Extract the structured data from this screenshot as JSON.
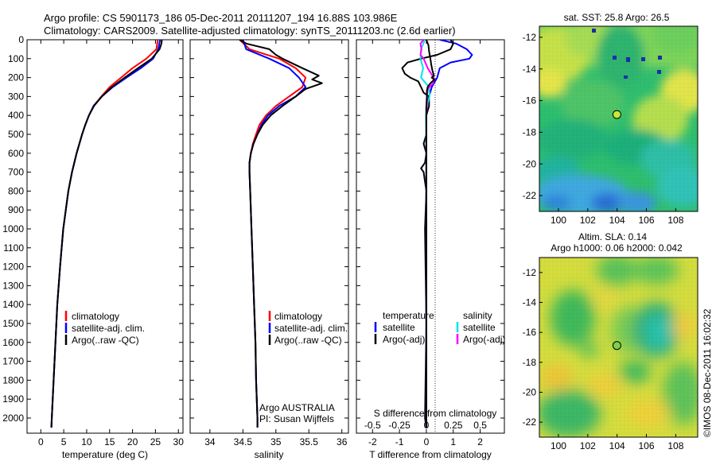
{
  "header": {
    "line1": "Argo profile: CS 5901173_186 05-Dec-2011 20111207_194 16.88S 103.986E",
    "line2": "Climatology: CARS2009. Satellite-adjusted climatology: synTS_20111203.nc (2.6d earlier)"
  },
  "side_stamp": "©IMOS 08-Dec-2011 16:02:32",
  "colors": {
    "climatology": "#ff0000",
    "satellite": "#0000ff",
    "argo": "#000000",
    "salinity_satellite": "#00e5e5",
    "salinity_argo": "#ff00ff"
  },
  "chart_data": [
    {
      "type": "line",
      "id": "temperature",
      "xlabel": "temperature (deg C)",
      "ylabel": "",
      "xlim": [
        -3,
        31
      ],
      "ylim": [
        2080,
        0
      ],
      "xticks": [
        0,
        5,
        10,
        15,
        20,
        25,
        30
      ],
      "xtick_labels": [
        "0",
        "5",
        "10",
        "15",
        "20",
        "25",
        "30"
      ],
      "yticks": [
        0,
        100,
        200,
        300,
        400,
        500,
        600,
        700,
        800,
        900,
        1000,
        1100,
        1200,
        1300,
        1400,
        1500,
        1600,
        1700,
        1800,
        1900,
        2000
      ],
      "ytick_labels": [
        "0",
        "100",
        "200",
        "300",
        "400",
        "500",
        "600",
        "700",
        "800",
        "900",
        "1000",
        "1100",
        "1200",
        "1300",
        "1400",
        "1500",
        "1600",
        "1700",
        "1800",
        "1900",
        "2000"
      ],
      "legend": [
        "climatology",
        "satellite-adj. clim.",
        "Argo(..raw -QC)"
      ],
      "series": [
        {
          "name": "climatology",
          "color": "#ff0000",
          "depth": [
            0,
            50,
            100,
            150,
            200,
            250,
            300,
            350,
            400,
            450,
            500,
            600,
            700,
            800,
            1000,
            1200,
            1400,
            1600,
            1800,
            2000,
            2050
          ],
          "values": [
            25.5,
            25.2,
            23.0,
            20.0,
            17.5,
            15.0,
            13.2,
            11.5,
            10.5,
            9.7,
            9.0,
            7.8,
            6.8,
            6.0,
            4.9,
            4.2,
            3.6,
            3.2,
            2.8,
            2.4,
            2.3
          ]
        },
        {
          "name": "satellite-adj. clim.",
          "color": "#0000ff",
          "depth": [
            0,
            50,
            100,
            150,
            200,
            250,
            300,
            350,
            400,
            450,
            500,
            600,
            700,
            800,
            1000,
            1200,
            1400,
            1600,
            1800,
            2000,
            2050
          ],
          "values": [
            26.0,
            25.6,
            24.5,
            21.8,
            18.7,
            15.7,
            13.3,
            11.5,
            10.5,
            9.7,
            9.0,
            7.8,
            6.8,
            6.0,
            4.9,
            4.2,
            3.6,
            3.2,
            2.8,
            2.4,
            2.3
          ]
        },
        {
          "name": "Argo(..raw -QC)",
          "color": "#000000",
          "depth": [
            0,
            20,
            50,
            100,
            150,
            200,
            250,
            300,
            350,
            400,
            450,
            500,
            600,
            700,
            800,
            1000,
            1200,
            1400,
            1600,
            1800,
            2000,
            2050
          ],
          "values": [
            26.4,
            26.3,
            25.9,
            24.2,
            21.2,
            18.3,
            15.5,
            13.3,
            11.6,
            10.5,
            9.7,
            9.0,
            7.8,
            6.8,
            6.0,
            4.9,
            4.2,
            3.6,
            3.2,
            2.8,
            2.4,
            2.3
          ]
        }
      ]
    },
    {
      "type": "line",
      "id": "salinity",
      "xlabel": "salinity",
      "ylabel": "",
      "xlim": [
        33.7,
        36.1
      ],
      "ylim": [
        2080,
        0
      ],
      "xticks": [
        34,
        34.5,
        35,
        35.5,
        36
      ],
      "xtick_labels": [
        "34",
        "34.5",
        "35",
        "35.5",
        "36"
      ],
      "legend": [
        "climatology",
        "satellite-adj. clim.",
        "Argo(..raw -QC)"
      ],
      "annotation": [
        "Argo AUSTRALIA",
        "PI: Susan Wijffels"
      ],
      "series": [
        {
          "name": "climatology",
          "color": "#ff0000",
          "depth": [
            0,
            50,
            100,
            150,
            200,
            250,
            300,
            350,
            400,
            450,
            500,
            550,
            600,
            650,
            700,
            800,
            1000,
            1200,
            1400,
            1600,
            1800,
            2000,
            2050
          ],
          "values": [
            34.45,
            34.6,
            35.05,
            35.3,
            35.45,
            35.4,
            35.2,
            35.0,
            34.85,
            34.75,
            34.7,
            34.65,
            34.62,
            34.6,
            34.6,
            34.61,
            34.63,
            34.65,
            34.67,
            34.69,
            34.7,
            34.72,
            34.72
          ]
        },
        {
          "name": "satellite-adj. clim.",
          "color": "#0000ff",
          "depth": [
            0,
            50,
            100,
            150,
            200,
            250,
            300,
            350,
            400,
            450,
            500,
            550,
            600,
            650,
            700,
            800,
            1000,
            1200,
            1400,
            1600,
            1800,
            2000,
            2050
          ],
          "values": [
            34.5,
            34.55,
            34.9,
            35.2,
            35.35,
            35.45,
            35.3,
            35.05,
            34.88,
            34.78,
            34.72,
            34.66,
            34.62,
            34.6,
            34.6,
            34.61,
            34.63,
            34.65,
            34.67,
            34.69,
            34.7,
            34.72,
            34.72
          ]
        },
        {
          "name": "Argo(..raw -QC)",
          "color": "#000000",
          "depth": [
            0,
            20,
            50,
            80,
            100,
            150,
            190,
            210,
            230,
            260,
            300,
            350,
            400,
            450,
            500,
            550,
            600,
            650,
            700,
            800,
            1000,
            1200,
            1400,
            1600,
            1800,
            2000,
            2050
          ],
          "values": [
            34.45,
            34.55,
            34.9,
            35.0,
            35.1,
            35.4,
            35.65,
            35.55,
            35.7,
            35.45,
            35.3,
            35.1,
            34.92,
            34.8,
            34.72,
            34.66,
            34.62,
            34.6,
            34.6,
            34.61,
            34.63,
            34.65,
            34.67,
            34.69,
            34.7,
            34.72,
            34.72
          ]
        }
      ]
    },
    {
      "type": "line",
      "id": "difference",
      "xlabel": "T difference from climatology",
      "x2label": "S difference from climatology",
      "xlim": [
        -2.6,
        2.9
      ],
      "ylim": [
        2080,
        0
      ],
      "xticks": [
        -2,
        -1,
        0,
        1,
        2
      ],
      "xtick_labels": [
        "-2",
        "-1",
        "0",
        "1",
        "2"
      ],
      "x2ticks": [
        -0.5,
        -0.25,
        0,
        0.25,
        0.5
      ],
      "x2tick_labels": [
        "-0.5",
        "-0.25",
        "0",
        "0.25",
        "0.5"
      ],
      "x2_scale": 4,
      "legend_temperature": {
        "title": "temperature",
        "items": [
          "satellite",
          "Argo(-adj)"
        ]
      },
      "legend_salinity": {
        "title": "salinity",
        "items": [
          "satellite",
          "Argo(-adj)"
        ]
      },
      "series": [
        {
          "name": "T satellite",
          "color": "#0000ff",
          "depth": [
            0,
            20,
            50,
            80,
            100,
            120,
            150,
            200,
            250,
            300,
            350,
            400,
            450,
            500,
            600,
            700,
            800,
            1000,
            1500,
            2050
          ],
          "values": [
            0.5,
            1.1,
            1.5,
            1.7,
            1.6,
            0.9,
            0.5,
            0.4,
            0.2,
            0.1,
            0.0,
            0.0,
            0.0,
            0.0,
            0.0,
            0.0,
            0.0,
            0.0,
            0.0,
            0.0
          ]
        },
        {
          "name": "T Argo(-adj)",
          "color": "#000000",
          "depth": [
            0,
            20,
            50,
            80,
            100,
            120,
            150,
            180,
            200,
            220,
            250,
            280,
            300,
            350,
            400,
            450,
            500,
            550,
            600,
            650,
            680,
            700,
            800,
            1000,
            1500,
            2000,
            2050
          ],
          "values": [
            0.9,
            1.0,
            0.9,
            0.4,
            -0.2,
            -0.7,
            -0.9,
            -0.8,
            -0.6,
            -0.3,
            -0.2,
            -0.1,
            0.1,
            0.1,
            0.0,
            0.0,
            0.0,
            -0.1,
            0.0,
            -0.05,
            -0.2,
            -0.1,
            0.0,
            -0.05,
            0.0,
            -0.05,
            0.0
          ]
        },
        {
          "name": "S satellite",
          "color": "#00e5e5",
          "depth": [
            0,
            50,
            100,
            150,
            200,
            250,
            300,
            350,
            400,
            500,
            600,
            700,
            800,
            1000,
            1500,
            2050
          ],
          "values": [
            -0.05,
            -0.2,
            -0.22,
            -0.12,
            -0.2,
            0.1,
            0.12,
            0.02,
            -0.02,
            -0.01,
            0.0,
            0.0,
            0.0,
            0.0,
            0.0,
            0.0
          ]
        },
        {
          "name": "S Argo(-adj)",
          "color": "#ff00ff",
          "depth": [
            0,
            20,
            50,
            80,
            100,
            150,
            180,
            200,
            230,
            260,
            300,
            350,
            400,
            450,
            500,
            600,
            700,
            800,
            1000,
            1500,
            2050
          ],
          "values": [
            -0.1,
            -0.22,
            -0.18,
            -0.22,
            -0.1,
            0.05,
            0.18,
            0.27,
            0.25,
            0.05,
            0.02,
            0.02,
            0.0,
            0.0,
            0.0,
            0.0,
            0.0,
            0.0,
            0.0,
            0.0,
            0.0
          ]
        },
        {
          "name": "S Argo(raw-QC)",
          "color": "#000000",
          "depth": [
            0,
            30,
            60,
            100,
            130,
            160,
            190,
            200,
            210,
            230,
            250,
            270,
            300,
            350,
            400,
            450,
            500,
            550,
            600,
            700,
            800,
            1000,
            1500,
            2050
          ],
          "values": [
            0.0,
            0.08,
            0.1,
            0.15,
            0.18,
            0.22,
            0.28,
            0.2,
            0.3,
            0.15,
            0.05,
            0.02,
            0.02,
            0.0,
            0.0,
            0.0,
            0.0,
            0.0,
            0.0,
            0.0,
            0.0,
            0.0,
            0.0,
            0.0
          ]
        }
      ]
    },
    {
      "type": "heatmap",
      "id": "sst_map",
      "title": "sat. SST: 25.8 Argo: 26.5",
      "xlim": [
        98.7,
        109.5
      ],
      "ylim": [
        -23,
        -11.3
      ],
      "xticks": [
        100,
        102,
        104,
        106,
        108
      ],
      "xtick_labels": [
        "100",
        "102",
        "104",
        "106",
        "108"
      ],
      "yticks": [
        -12,
        -14,
        -16,
        -18,
        -20,
        -22
      ],
      "ytick_labels": [
        "-12",
        "-14",
        "-16",
        "-18",
        "-20",
        "-22"
      ],
      "marker": [
        103.986,
        -16.88
      ]
    },
    {
      "type": "heatmap",
      "id": "sla_map",
      "title_line1": "Altim. SLA: 0.14",
      "title_line2": "Argo h1000: 0.06 h2000: 0.042",
      "xlim": [
        98.7,
        109.5
      ],
      "ylim": [
        -23,
        -11.0
      ],
      "xticks": [
        100,
        102,
        104,
        106,
        108
      ],
      "xtick_labels": [
        "100",
        "102",
        "104",
        "106",
        "108"
      ],
      "yticks": [
        -12,
        -14,
        -16,
        -18,
        -20,
        -22
      ],
      "ytick_labels": [
        "-12",
        "-14",
        "-16",
        "-18",
        "-20",
        "-22"
      ],
      "marker": [
        103.986,
        -16.88
      ]
    }
  ]
}
